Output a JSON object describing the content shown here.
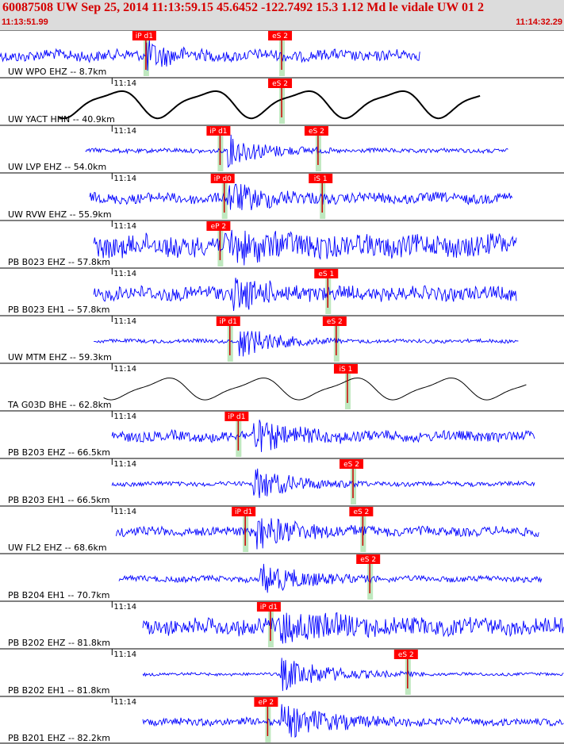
{
  "header": {
    "title": "60087508 UW Sep 25, 2014 11:13:59.15   45.6452 -122.7492 15.3 1.12 Md le vidale UW 01   2",
    "start_time": "11:13:51.99",
    "end_time": "11:14:32.29",
    "background": "#dcdcdc",
    "text_color": "#d40000"
  },
  "colors": {
    "trace_short_period": "#0000ff",
    "trace_broadband": "#000000",
    "pick_box": "#ff0000",
    "pick_text": "#ffffff",
    "window_band": "#b8e6b8",
    "panel_border": "#000000"
  },
  "chart_data": {
    "type": "seismogram",
    "x_unit": "seconds since 11:13:51.99",
    "xlim": [
      0,
      40.3
    ],
    "minute_tick_label": "11:14",
    "panels": [
      {
        "label": "UW WPO EHZ -- 8.7km",
        "channel": "EHZ",
        "color": "blue",
        "tick_label": "",
        "trace_start": 0.0,
        "trace_end": 30.0,
        "amplitude": 0.3,
        "style": "noise",
        "event": [
          10.4,
          14.8
        ],
        "picks": [
          {
            "label": "iP d1",
            "t": 9.8
          },
          {
            "label": "eS 2",
            "t": 19.5
          }
        ]
      },
      {
        "label": "UW YACT HHN -- 40.9km",
        "channel": "HHN",
        "color": "black",
        "tick_label": "11:14",
        "trace_start": 4.2,
        "trace_end": 34.3,
        "amplitude": 0.7,
        "style": "wave",
        "picks": [
          {
            "label": "eS 2",
            "t": 19.5
          }
        ]
      },
      {
        "label": "UW LVP EHZ -- 54.0km",
        "channel": "EHZ",
        "color": "blue",
        "tick_label": "11:14",
        "trace_start": 6.1,
        "trace_end": 36.3,
        "amplitude": 0.12,
        "style": "noise",
        "event": [
          16.1,
          23.7
        ],
        "picks": [
          {
            "label": "iP d1",
            "t": 15.1
          },
          {
            "label": "eS 2",
            "t": 22.1
          }
        ]
      },
      {
        "label": "UW RVW EHZ -- 55.9km",
        "channel": "EHZ",
        "color": "blue",
        "tick_label": "11:14",
        "trace_start": 6.4,
        "trace_end": 36.6,
        "amplitude": 0.28,
        "style": "noise",
        "event": [
          16.2,
          23.7
        ],
        "picks": [
          {
            "label": "iP d0",
            "t": 15.4
          },
          {
            "label": "iS 1",
            "t": 22.4
          }
        ]
      },
      {
        "label": "PB B023 EHZ -- 57.8km",
        "channel": "EHZ",
        "color": "blue",
        "tick_label": "11:14",
        "trace_start": 6.7,
        "trace_end": 36.9,
        "amplitude": 0.6,
        "style": "noise",
        "event": [
          16.4,
          24.0
        ],
        "picks": [
          {
            "label": "eP 2",
            "t": 15.1
          }
        ]
      },
      {
        "label": "PB B023 EH1 -- 57.8km",
        "channel": "EH1",
        "color": "blue",
        "tick_label": "11:14",
        "trace_start": 6.7,
        "trace_end": 36.9,
        "amplitude": 0.38,
        "style": "noise",
        "event": [
          16.6,
          24.3
        ],
        "picks": [
          {
            "label": "eS 1",
            "t": 22.8
          }
        ]
      },
      {
        "label": "UW MTM EHZ -- 59.3km",
        "channel": "EHZ",
        "color": "blue",
        "tick_label": "11:14",
        "trace_start": 6.7,
        "trace_end": 37.1,
        "amplitude": 0.1,
        "style": "noise",
        "event": [
          17.1,
          24.5
        ],
        "picks": [
          {
            "label": "iP d1",
            "t": 15.8
          },
          {
            "label": "eS 2",
            "t": 23.4
          }
        ]
      },
      {
        "label": "TA G03D BHE -- 62.8km",
        "channel": "BHE",
        "color": "black",
        "tick_label": "11:14",
        "trace_start": 7.4,
        "trace_end": 37.6,
        "amplitude": 0.55,
        "style": "wave",
        "picks": [
          {
            "label": "iS 1",
            "t": 24.2
          }
        ]
      },
      {
        "label": "PB B203 EHZ -- 66.5km",
        "channel": "EHZ",
        "color": "blue",
        "tick_label": "11:14",
        "trace_start": 8.0,
        "trace_end": 38.2,
        "amplitude": 0.28,
        "style": "noise",
        "event": [
          18.0,
          26.4
        ],
        "picks": [
          {
            "label": "iP d1",
            "t": 16.4
          }
        ]
      },
      {
        "label": "PB B203 EH1 -- 66.5km",
        "channel": "EH1",
        "color": "blue",
        "tick_label": "11:14",
        "trace_start": 8.0,
        "trace_end": 38.2,
        "amplitude": 0.12,
        "style": "noise",
        "event": [
          18.1,
          26.4
        ],
        "picks": [
          {
            "label": "eS 2",
            "t": 24.6
          }
        ]
      },
      {
        "label": "UW FL2 EHZ -- 68.6km",
        "channel": "EHZ",
        "color": "blue",
        "tick_label": "11:14",
        "trace_start": 8.3,
        "trace_end": 38.5,
        "amplitude": 0.25,
        "style": "noise",
        "event": [
          18.3,
          26.8
        ],
        "picks": [
          {
            "label": "iP d1",
            "t": 16.9
          },
          {
            "label": "eS 2",
            "t": 25.3
          }
        ]
      },
      {
        "label": "PB B204 EH1 -- 70.7km",
        "channel": "EH1",
        "color": "blue",
        "tick_label": "",
        "trace_start": 8.5,
        "trace_end": 38.7,
        "amplitude": 0.16,
        "style": "noise",
        "event": [
          18.6,
          27.2
        ],
        "picks": [
          {
            "label": "eS 2",
            "t": 25.8
          }
        ]
      },
      {
        "label": "PB B202 EHZ -- 81.8km",
        "channel": "EHZ",
        "color": "blue",
        "tick_label": "11:14",
        "trace_start": 10.2,
        "trace_end": 40.3,
        "amplitude": 0.45,
        "style": "noise",
        "event": [
          20.0,
          30.3
        ],
        "picks": [
          {
            "label": "iP d1",
            "t": 18.7
          }
        ]
      },
      {
        "label": "PB B202 EH1 -- 81.8km",
        "channel": "EH1",
        "color": "blue",
        "tick_label": "11:14",
        "trace_start": 10.2,
        "trace_end": 40.3,
        "amplitude": 0.08,
        "style": "noise",
        "event": [
          20.0,
          30.3
        ],
        "picks": [
          {
            "label": "eS 2",
            "t": 28.5
          }
        ]
      },
      {
        "label": "PB B201 EHZ -- 82.2km",
        "channel": "EHZ",
        "color": "blue",
        "tick_label": "11:14",
        "trace_start": 10.2,
        "trace_end": 40.3,
        "amplitude": 0.2,
        "style": "noise",
        "event": [
          20.1,
          30.4
        ],
        "picks": [
          {
            "label": "eP 2",
            "t": 18.5
          }
        ]
      }
    ],
    "window_markers": {
      "tick_label": "11:14",
      "minute_mark_seconds": 8.01
    }
  }
}
